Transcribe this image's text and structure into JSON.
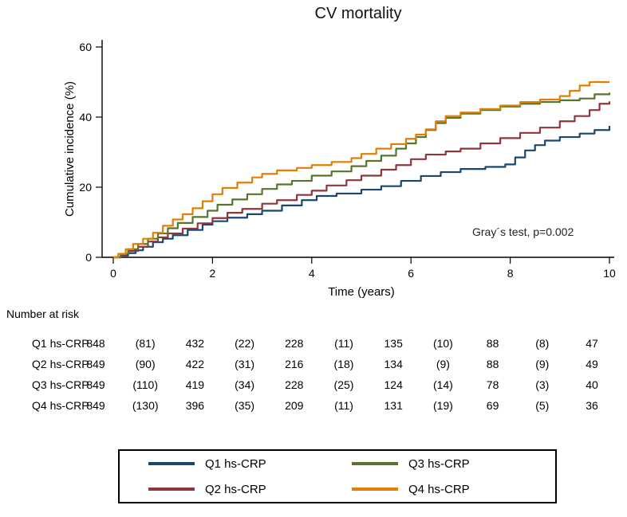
{
  "chart_data": {
    "type": "line",
    "step": true,
    "title": "CV mortality",
    "xlabel": "Time (years)",
    "ylabel": "Cumulative incidence (%)",
    "xlim": [
      0,
      10
    ],
    "ylim": [
      0,
      60
    ],
    "xticks": [
      0,
      2,
      4,
      6,
      8,
      10
    ],
    "yticks": [
      0,
      20,
      40,
      60
    ],
    "grid": false,
    "legend_position": "bottom",
    "annotation": "Gray´s test, p=0.002",
    "series": [
      {
        "name": "Q1 hs-CRP",
        "color": "#1a476f",
        "points": [
          [
            0,
            0
          ],
          [
            0.15,
            0.5
          ],
          [
            0.3,
            1.2
          ],
          [
            0.45,
            2
          ],
          [
            0.6,
            3
          ],
          [
            0.8,
            4.3
          ],
          [
            1.0,
            5.3
          ],
          [
            1.2,
            6.3
          ],
          [
            1.5,
            7.8
          ],
          [
            1.8,
            9.3
          ],
          [
            2.0,
            10.3
          ],
          [
            2.3,
            11.3
          ],
          [
            2.7,
            12.3
          ],
          [
            3.0,
            13.3
          ],
          [
            3.4,
            14.8
          ],
          [
            3.8,
            16.3
          ],
          [
            4.1,
            17.5
          ],
          [
            4.5,
            18.2
          ],
          [
            5.0,
            19.3
          ],
          [
            5.4,
            20.3
          ],
          [
            5.8,
            21.8
          ],
          [
            6.2,
            23.2
          ],
          [
            6.6,
            24.3
          ],
          [
            7.0,
            25.2
          ],
          [
            7.5,
            25.8
          ],
          [
            7.9,
            26.5
          ],
          [
            8.1,
            28.5
          ],
          [
            8.3,
            30.5
          ],
          [
            8.5,
            32
          ],
          [
            8.7,
            33.3
          ],
          [
            9.0,
            34.3
          ],
          [
            9.4,
            35.3
          ],
          [
            9.7,
            36.3
          ],
          [
            10,
            37.5
          ]
        ]
      },
      {
        "name": "Q2 hs-CRP",
        "color": "#90353b",
        "points": [
          [
            0,
            0
          ],
          [
            0.15,
            0.8
          ],
          [
            0.3,
            1.8
          ],
          [
            0.5,
            3
          ],
          [
            0.7,
            4.5
          ],
          [
            0.9,
            5.7
          ],
          [
            1.1,
            6.8
          ],
          [
            1.4,
            8.2
          ],
          [
            1.7,
            9.7
          ],
          [
            2.0,
            11.2
          ],
          [
            2.3,
            12.7
          ],
          [
            2.6,
            13.8
          ],
          [
            3.0,
            15.3
          ],
          [
            3.3,
            16.3
          ],
          [
            3.7,
            17.8
          ],
          [
            4.0,
            19
          ],
          [
            4.3,
            20.5
          ],
          [
            4.7,
            22
          ],
          [
            5.0,
            23.3
          ],
          [
            5.4,
            25
          ],
          [
            5.7,
            26.3
          ],
          [
            6.0,
            28
          ],
          [
            6.3,
            29.3
          ],
          [
            6.7,
            30.2
          ],
          [
            7.0,
            31
          ],
          [
            7.4,
            32.5
          ],
          [
            7.8,
            34
          ],
          [
            8.2,
            35.5
          ],
          [
            8.6,
            37
          ],
          [
            9.0,
            38.8
          ],
          [
            9.3,
            40.3
          ],
          [
            9.6,
            42
          ],
          [
            9.8,
            43.8
          ],
          [
            10,
            44.5
          ]
        ]
      },
      {
        "name": "Q3 hs-CRP",
        "color": "#55752f",
        "points": [
          [
            0,
            0
          ],
          [
            0.15,
            1
          ],
          [
            0.3,
            2.3
          ],
          [
            0.5,
            3.8
          ],
          [
            0.7,
            5.3
          ],
          [
            0.9,
            6.8
          ],
          [
            1.1,
            8.3
          ],
          [
            1.3,
            9.8
          ],
          [
            1.6,
            11.5
          ],
          [
            1.9,
            13.3
          ],
          [
            2.1,
            15
          ],
          [
            2.4,
            16.5
          ],
          [
            2.7,
            18
          ],
          [
            3.0,
            19.5
          ],
          [
            3.3,
            20.8
          ],
          [
            3.6,
            21.8
          ],
          [
            4.0,
            23.3
          ],
          [
            4.4,
            24.5
          ],
          [
            4.8,
            26
          ],
          [
            5.1,
            27.5
          ],
          [
            5.4,
            29
          ],
          [
            5.7,
            31
          ],
          [
            5.9,
            32.5
          ],
          [
            6.1,
            34.3
          ],
          [
            6.3,
            36.3
          ],
          [
            6.5,
            38.3
          ],
          [
            6.7,
            39.8
          ],
          [
            7.0,
            41
          ],
          [
            7.4,
            42
          ],
          [
            7.8,
            43
          ],
          [
            8.2,
            43.8
          ],
          [
            8.6,
            44.3
          ],
          [
            9.0,
            44.8
          ],
          [
            9.4,
            45.3
          ],
          [
            9.7,
            46.5
          ],
          [
            10,
            47
          ]
        ]
      },
      {
        "name": "Q4 hs-CRP",
        "color": "#e37e00",
        "points": [
          [
            0,
            0
          ],
          [
            0.1,
            1
          ],
          [
            0.25,
            2.3
          ],
          [
            0.4,
            3.8
          ],
          [
            0.6,
            5.3
          ],
          [
            0.8,
            7
          ],
          [
            1.0,
            9
          ],
          [
            1.2,
            10.8
          ],
          [
            1.4,
            12.3
          ],
          [
            1.6,
            14
          ],
          [
            1.8,
            16
          ],
          [
            2.0,
            18
          ],
          [
            2.2,
            19.8
          ],
          [
            2.5,
            21.3
          ],
          [
            2.8,
            22.8
          ],
          [
            3.0,
            23.8
          ],
          [
            3.3,
            24.8
          ],
          [
            3.7,
            25.5
          ],
          [
            4.0,
            26.3
          ],
          [
            4.4,
            27.2
          ],
          [
            4.8,
            28.3
          ],
          [
            5.0,
            29.5
          ],
          [
            5.3,
            31
          ],
          [
            5.6,
            32.3
          ],
          [
            5.9,
            33.8
          ],
          [
            6.1,
            35
          ],
          [
            6.3,
            36.5
          ],
          [
            6.5,
            38.8
          ],
          [
            6.7,
            40.3
          ],
          [
            7.0,
            41.3
          ],
          [
            7.4,
            42.3
          ],
          [
            7.8,
            43.3
          ],
          [
            8.2,
            44.3
          ],
          [
            8.6,
            45
          ],
          [
            9.0,
            46
          ],
          [
            9.2,
            47.5
          ],
          [
            9.4,
            49
          ],
          [
            9.6,
            50
          ],
          [
            10,
            50
          ]
        ]
      }
    ]
  },
  "risk_table": {
    "heading": "Number at risk",
    "times": [
      0,
      1,
      2,
      3,
      4,
      5,
      6,
      7,
      8,
      9,
      10
    ],
    "rows": [
      {
        "label": "Q1 hs-CRP",
        "values": [
          "848",
          "(81)",
          "432",
          "(22)",
          "228",
          "(11)",
          "135",
          "(10)",
          "88",
          "(8)",
          "47"
        ]
      },
      {
        "label": "Q2 hs-CRP",
        "values": [
          "849",
          "(90)",
          "422",
          "(31)",
          "216",
          "(18)",
          "134",
          "(9)",
          "88",
          "(9)",
          "49"
        ]
      },
      {
        "label": "Q3 hs-CRP",
        "values": [
          "849",
          "(110)",
          "419",
          "(34)",
          "228",
          "(25)",
          "124",
          "(14)",
          "78",
          "(3)",
          "40"
        ]
      },
      {
        "label": "Q4 hs-CRP",
        "values": [
          "849",
          "(130)",
          "396",
          "(35)",
          "209",
          "(11)",
          "131",
          "(19)",
          "69",
          "(5)",
          "36"
        ]
      }
    ]
  }
}
